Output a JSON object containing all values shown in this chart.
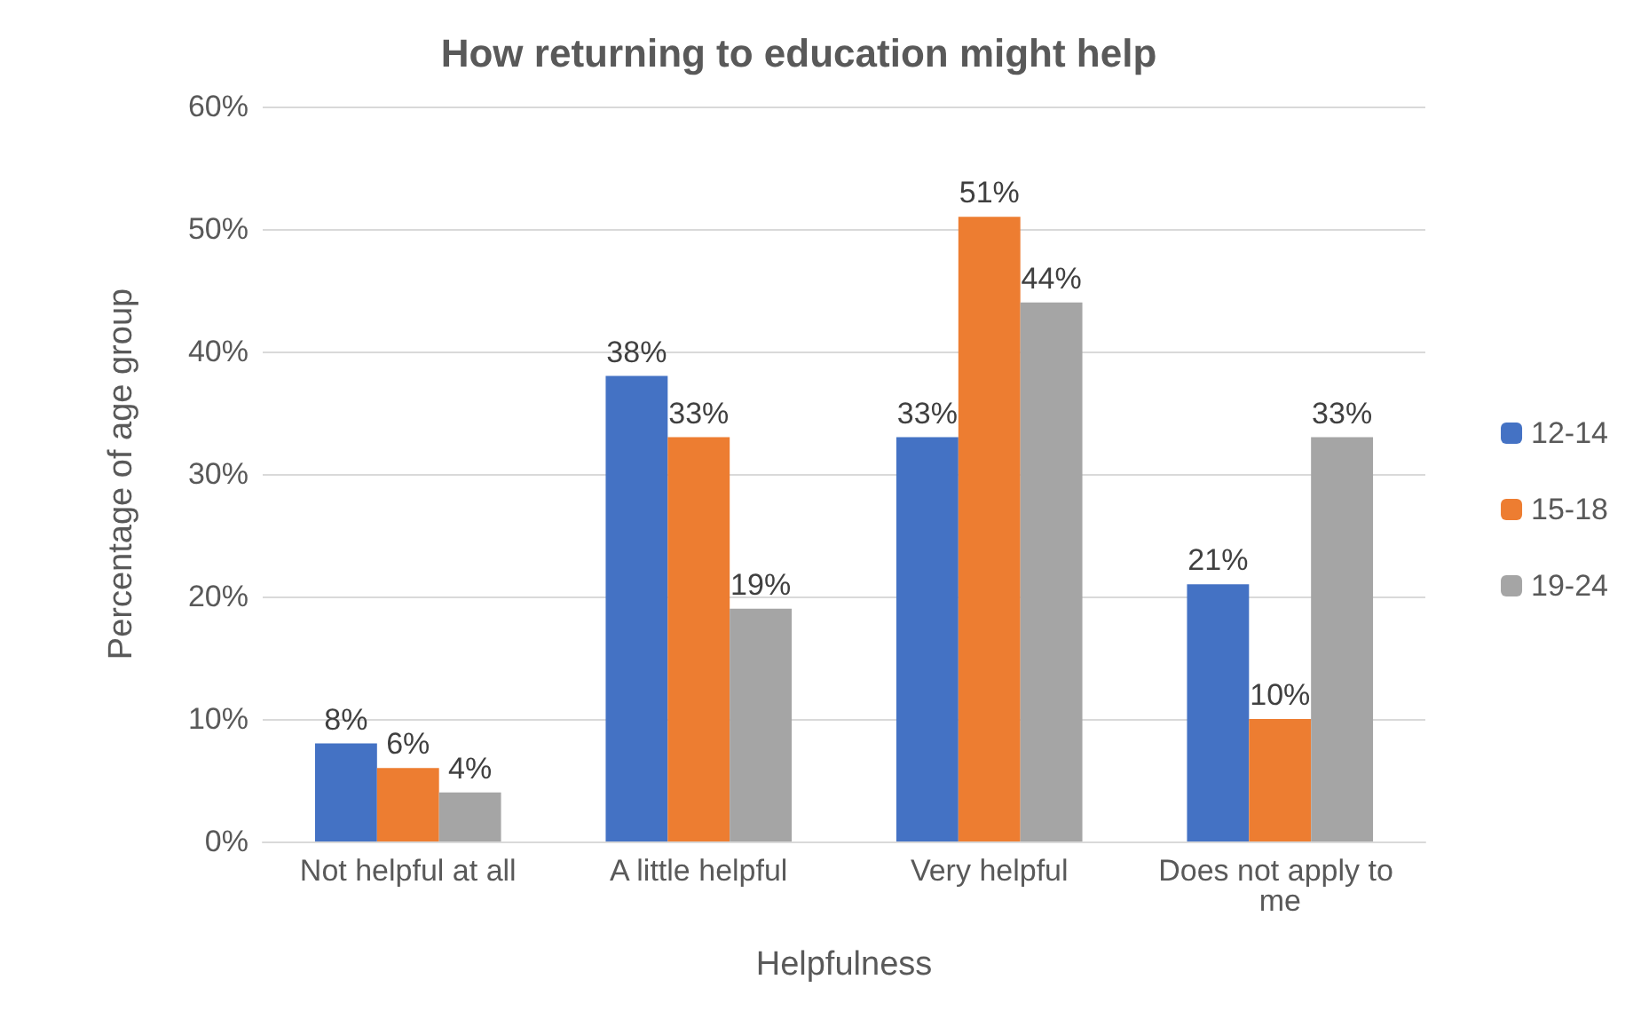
{
  "chart_data": {
    "type": "bar",
    "title": "How returning to education might help",
    "xlabel": "Helpfulness",
    "ylabel": "Percentage of age group",
    "categories": [
      "Not helpful at all",
      "A little helpful",
      "Very helpful",
      "Does not apply to me"
    ],
    "series": [
      {
        "name": "12-14",
        "color": "#4472c4",
        "values": [
          8,
          38,
          33,
          21
        ],
        "value_labels": [
          "8%",
          "38%",
          "33%",
          "21%"
        ]
      },
      {
        "name": "15-18",
        "color": "#ed7d31",
        "values": [
          6,
          33,
          51,
          10
        ],
        "value_labels": [
          "6%",
          "33%",
          "51%",
          "10%"
        ]
      },
      {
        "name": "19-24",
        "color": "#a5a5a5",
        "values": [
          4,
          19,
          44,
          33
        ],
        "value_labels": [
          "4%",
          "19%",
          "44%",
          "33%"
        ]
      }
    ],
    "ylim": [
      0,
      60
    ],
    "yticks": [
      {
        "value": 0,
        "label": "0%"
      },
      {
        "value": 10,
        "label": "10%"
      },
      {
        "value": 20,
        "label": "20%"
      },
      {
        "value": 30,
        "label": "30%"
      },
      {
        "value": 40,
        "label": "40%"
      },
      {
        "value": 50,
        "label": "50%"
      },
      {
        "value": 60,
        "label": "60%"
      }
    ],
    "grid": "y",
    "legend": "right"
  }
}
